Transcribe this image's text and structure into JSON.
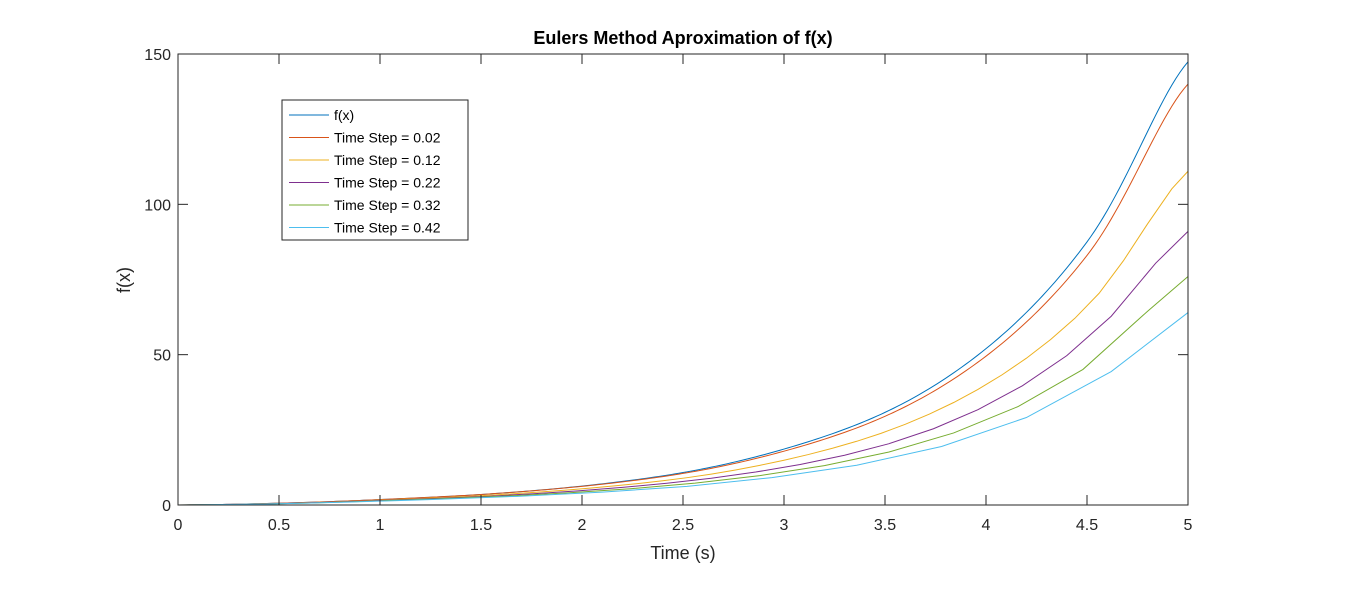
{
  "chart_data": {
    "type": "line",
    "title": "Eulers Method Aproximation of f(x)",
    "xlabel": "Time (s)",
    "ylabel": "f(x)",
    "xlim": [
      0,
      5
    ],
    "ylim": [
      0,
      150
    ],
    "xticks": [
      0,
      0.5,
      1,
      1.5,
      2,
      2.5,
      3,
      3.5,
      4,
      4.5,
      5
    ],
    "xtick_labels": [
      "0",
      "0.5",
      "1",
      "1.5",
      "2",
      "2.5",
      "3",
      "3.5",
      "4",
      "4.5",
      "5"
    ],
    "yticks": [
      0,
      50,
      100,
      150
    ],
    "ytick_labels": [
      "0",
      "50",
      "100",
      "150"
    ],
    "grid": false,
    "legend_position": "top-left",
    "series": [
      {
        "name": "f(x)",
        "color": "#0072BD",
        "step": 0.02,
        "x": [
          0,
          0.5,
          1,
          1.5,
          2,
          2.5,
          3,
          3.5,
          4,
          4.5,
          5
        ],
        "y": [
          0,
          0.6,
          1.8,
          3.5,
          6.3,
          10.8,
          18.6,
          30.8,
          52,
          87.5,
          147.4
        ]
      },
      {
        "name": "Time Step = 0.02",
        "color": "#D95319",
        "step": 0.02,
        "x": [
          0,
          0.5,
          1,
          1.5,
          2,
          2.5,
          3,
          3.5,
          4,
          4.5,
          5
        ],
        "y": [
          0,
          0.6,
          1.8,
          3.5,
          6.2,
          10.5,
          17.9,
          29.5,
          49.5,
          83,
          140
        ]
      },
      {
        "name": "Time Step = 0.12",
        "color": "#EDB120",
        "step": 0.12,
        "x": [
          0,
          0.5,
          1,
          1.5,
          2,
          2.5,
          3,
          3.5,
          4,
          4.5,
          5
        ],
        "y": [
          0,
          0.5,
          1.6,
          3.1,
          5.4,
          8.9,
          14.9,
          24.3,
          40,
          66,
          111
        ]
      },
      {
        "name": "Time Step = 0.22",
        "color": "#7E2F8E",
        "step": 0.22,
        "x": [
          0,
          0.5,
          1,
          1.5,
          2,
          2.5,
          3,
          3.5,
          4,
          4.5,
          5
        ],
        "y": [
          0,
          0.5,
          1.5,
          2.8,
          4.8,
          7.8,
          12.5,
          20,
          33,
          55,
          91
        ]
      },
      {
        "name": "Time Step = 0.32",
        "color": "#77AC30",
        "step": 0.32,
        "x": [
          0,
          0.5,
          1,
          1.5,
          2,
          2.5,
          3,
          3.5,
          4,
          4.5,
          5
        ],
        "y": [
          0,
          0.4,
          1.4,
          2.6,
          4.3,
          6.9,
          10.9,
          17.3,
          28,
          46,
          76
        ]
      },
      {
        "name": "Time Step = 0.42",
        "color": "#4DBEEE",
        "step": 0.42,
        "x": [
          0,
          0.5,
          1,
          1.5,
          2,
          2.5,
          3,
          3.5,
          4,
          4.5,
          5
        ],
        "y": [
          0,
          0.4,
          1.3,
          2.4,
          3.9,
          6.1,
          9.6,
          15,
          24,
          39,
          64
        ]
      }
    ]
  }
}
